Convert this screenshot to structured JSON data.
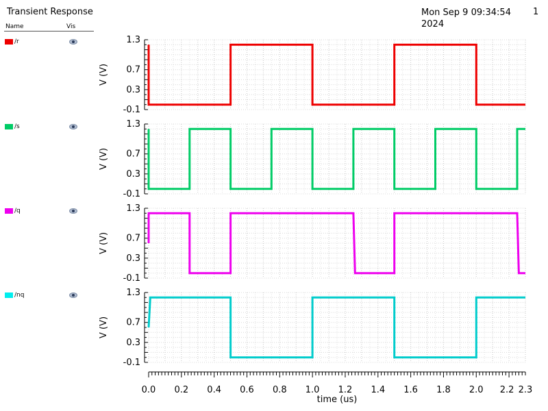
{
  "header": {
    "title": "Transient Response",
    "date": "Mon Sep 9 09:34:54 2024",
    "page_number": "1"
  },
  "legend": {
    "name_header": "Name",
    "vis_header": "Vis"
  },
  "chart_data": {
    "type": "line",
    "title": "Transient Response",
    "xlabel": "time (us)",
    "xlim": [
      0.0,
      2.3
    ],
    "xticks": [
      "0.0",
      "0.2",
      "0.4",
      "0.6",
      "0.8",
      "1.0",
      "1.2",
      "1.4",
      "1.6",
      "1.8",
      "2.0",
      "2.2",
      "2.3"
    ],
    "ylabel": "V (V)",
    "ylim": [
      -0.1,
      1.3
    ],
    "yticks": [
      "1.3",
      "0.7",
      "0.3",
      "-0.1"
    ],
    "grid": true,
    "series": [
      {
        "name": "/r",
        "color": "#ee0000",
        "x": [
          0.0,
          0.0,
          0.0,
          0.5,
          0.5,
          1.0,
          1.0,
          1.5,
          1.5,
          2.0,
          2.0,
          2.3
        ],
        "y": [
          1.2,
          0.0,
          0.0,
          0.0,
          1.2,
          1.2,
          0.0,
          0.0,
          1.2,
          1.2,
          0.0,
          0.0
        ]
      },
      {
        "name": "/s",
        "color": "#00cc66",
        "x": [
          0.0,
          0.0,
          0.0,
          0.25,
          0.25,
          0.5,
          0.5,
          0.75,
          0.75,
          1.0,
          1.0,
          1.25,
          1.25,
          1.5,
          1.5,
          1.75,
          1.75,
          2.0,
          2.0,
          2.25,
          2.25,
          2.3
        ],
        "y": [
          1.2,
          0.0,
          0.0,
          0.0,
          1.2,
          1.2,
          0.0,
          0.0,
          1.2,
          1.2,
          0.0,
          0.0,
          1.2,
          1.2,
          0.0,
          0.0,
          1.2,
          1.2,
          0.0,
          0.0,
          1.2,
          1.2
        ]
      },
      {
        "name": "/q",
        "color": "#ee00ee",
        "x": [
          0.0,
          0.0,
          0.25,
          0.25,
          0.5,
          0.5,
          0.75,
          0.75,
          0.75,
          1.0,
          1.0,
          1.0,
          1.25,
          1.26,
          1.5,
          1.5,
          1.75,
          1.75,
          1.75,
          2.0,
          2.0,
          2.0,
          2.25,
          2.26,
          2.3
        ],
        "y": [
          0.6,
          1.2,
          1.2,
          0.0,
          0.0,
          1.2,
          1.2,
          1.21,
          1.2,
          1.2,
          1.18,
          1.2,
          1.2,
          0.0,
          0.0,
          1.2,
          1.2,
          1.21,
          1.2,
          1.2,
          1.18,
          1.2,
          1.2,
          0.0,
          0.0
        ]
      },
      {
        "name": "/nq",
        "color": "#00cccc",
        "x": [
          0.0,
          0.01,
          0.5,
          0.5,
          1.0,
          1.0,
          1.5,
          1.5,
          2.0,
          2.0,
          2.3
        ],
        "y": [
          0.6,
          1.2,
          1.2,
          0.0,
          0.0,
          1.2,
          1.2,
          0.0,
          0.0,
          1.2,
          1.2
        ]
      }
    ]
  }
}
